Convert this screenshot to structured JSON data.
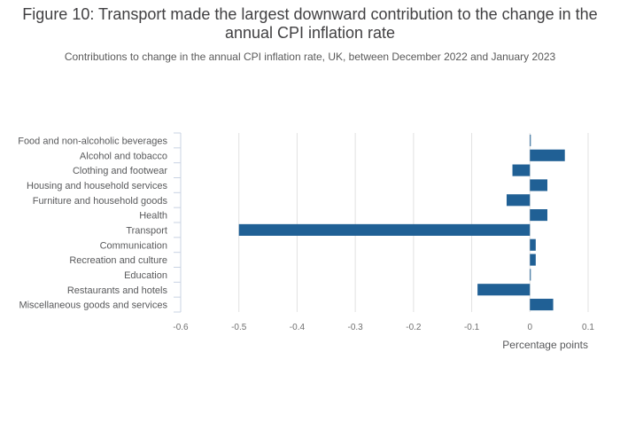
{
  "title": "Figure 10: Transport made the largest downward contribution to the change in the annual CPI inflation rate",
  "subtitle": "Contributions to change in the annual CPI inflation rate, UK, between December 2022 and January 2023",
  "colors": {
    "bar": "#206095",
    "grid": "#e2e2e2",
    "axis": "#c9d3e3"
  },
  "chart_data": {
    "type": "bar",
    "orientation": "horizontal",
    "categories": [
      "Food and non-alcoholic beverages",
      "Alcohol and tobacco",
      "Clothing and footwear",
      "Housing and household services",
      "Furniture and household goods",
      "Health",
      "Transport",
      "Communication",
      "Recreation and culture",
      "Education",
      "Restaurants and hotels",
      "Miscellaneous goods and services"
    ],
    "values": [
      0.0,
      0.06,
      -0.03,
      0.03,
      -0.04,
      0.03,
      -0.5,
      0.01,
      0.01,
      0.0,
      -0.09,
      0.04
    ],
    "xlabel": "Percentage points",
    "xlim": [
      -0.6,
      0.1
    ],
    "xticks": [
      -0.6,
      -0.5,
      -0.4,
      -0.3,
      -0.2,
      -0.1,
      0,
      0.1
    ],
    "xtick_labels": [
      "-0.6",
      "-0.5",
      "-0.4",
      "-0.3",
      "-0.2",
      "-0.1",
      "0",
      "0.1"
    ],
    "grid": true,
    "legend": "none"
  }
}
